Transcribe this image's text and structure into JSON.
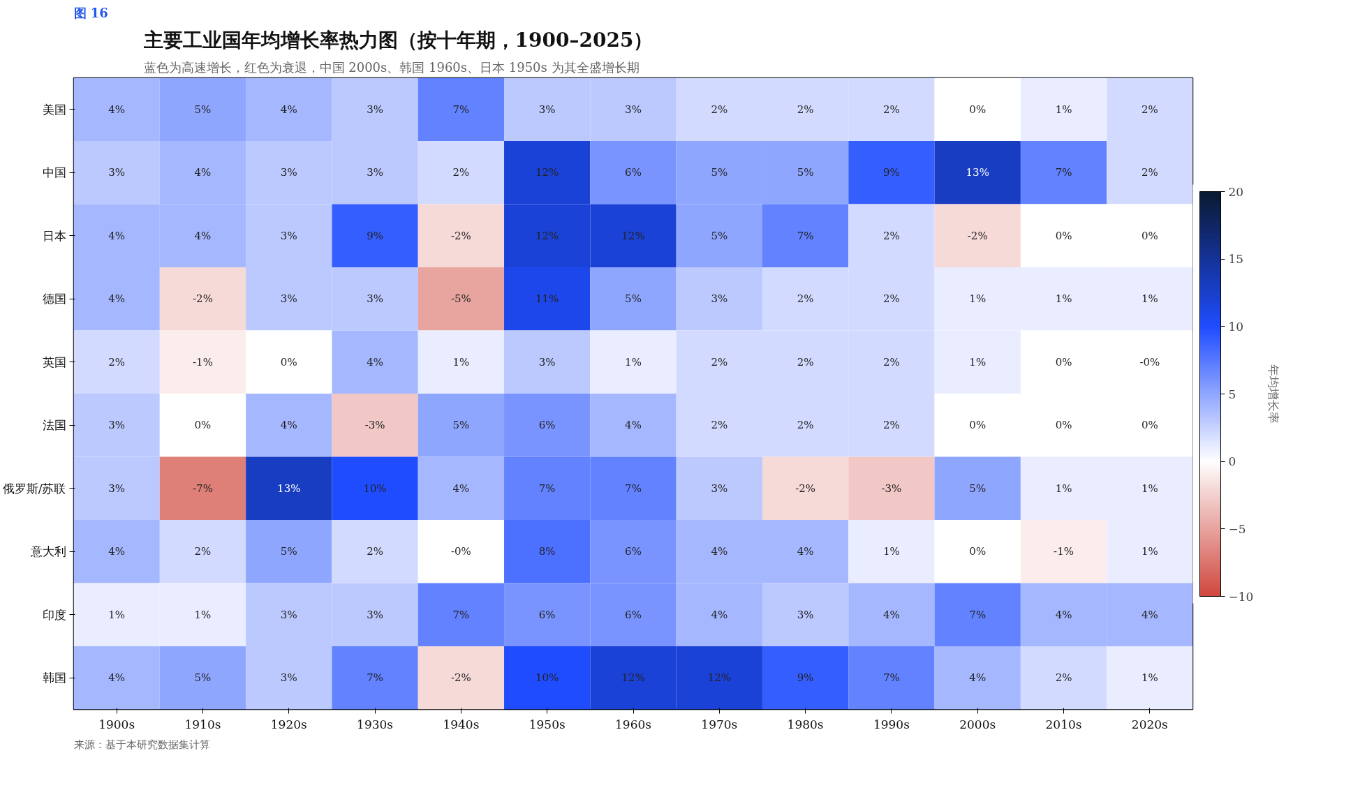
{
  "chart_data": {
    "type": "heatmap",
    "title": "主要工业国年均增长率热力图（按十年期，1900–2025）",
    "subtitle": "蓝色为高速增长，红色为衰退，中国 2000s、韩国 1960s、日本 1950s 为其全盛增长期",
    "annotations": [
      "图 16",
      "来源：基于本研究数据集计算"
    ],
    "categories": [
      "1900s",
      "1910s",
      "1920s",
      "1930s",
      "1940s",
      "1950s",
      "1960s",
      "1970s",
      "1980s",
      "1990s",
      "2000s",
      "2010s",
      "2020s"
    ],
    "y_categories": [
      "美国",
      "中国",
      "日本",
      "德国",
      "英国",
      "法国",
      "俄罗斯/苏联",
      "意大利",
      "印度",
      "韩国"
    ],
    "cells": [
      [
        4,
        5,
        4,
        3,
        7,
        3,
        3,
        2,
        2,
        2,
        0,
        1,
        2
      ],
      [
        3,
        4,
        3,
        3,
        2,
        12,
        6,
        5,
        5,
        9,
        13,
        7,
        2
      ],
      [
        4,
        4,
        3,
        9,
        -2,
        12,
        12,
        5,
        7,
        2,
        -2,
        0,
        0
      ],
      [
        4,
        -2,
        3,
        3,
        -5,
        11,
        5,
        3,
        2,
        2,
        1,
        1,
        1
      ],
      [
        2,
        -1,
        0,
        4,
        1,
        3,
        1,
        2,
        2,
        2,
        1,
        0,
        0
      ],
      [
        3,
        0,
        4,
        -3,
        5,
        6,
        4,
        2,
        2,
        2,
        0,
        0,
        0
      ],
      [
        3,
        -7,
        13,
        10,
        4,
        7,
        7,
        3,
        -2,
        -3,
        5,
        1,
        1
      ],
      [
        4,
        2,
        5,
        2,
        0,
        8,
        6,
        4,
        4,
        1,
        0,
        -1,
        1
      ],
      [
        1,
        1,
        3,
        3,
        7,
        6,
        6,
        4,
        3,
        4,
        7,
        4,
        4
      ],
      [
        4,
        5,
        3,
        7,
        -2,
        10,
        12,
        12,
        9,
        7,
        4,
        2,
        1
      ]
    ],
    "cell_labels": [
      [
        "4%",
        "5%",
        "4%",
        "3%",
        "7%",
        "3%",
        "3%",
        "2%",
        "2%",
        "2%",
        "0%",
        "1%",
        "2%"
      ],
      [
        "3%",
        "4%",
        "3%",
        "3%",
        "2%",
        "12%",
        "6%",
        "5%",
        "5%",
        "9%",
        "13%",
        "7%",
        "2%"
      ],
      [
        "4%",
        "4%",
        "3%",
        "9%",
        "-2%",
        "12%",
        "12%",
        "5%",
        "7%",
        "2%",
        "-2%",
        "0%",
        "0%"
      ],
      [
        "4%",
        "-2%",
        "3%",
        "3%",
        "-5%",
        "11%",
        "5%",
        "3%",
        "2%",
        "2%",
        "1%",
        "1%",
        "1%"
      ],
      [
        "2%",
        "-1%",
        "0%",
        "4%",
        "1%",
        "3%",
        "1%",
        "2%",
        "2%",
        "2%",
        "1%",
        "0%",
        "-0%"
      ],
      [
        "3%",
        "0%",
        "4%",
        "-3%",
        "5%",
        "6%",
        "4%",
        "2%",
        "2%",
        "2%",
        "0%",
        "0%",
        "0%"
      ],
      [
        "3%",
        "-7%",
        "13%",
        "10%",
        "4%",
        "7%",
        "7%",
        "3%",
        "-2%",
        "-3%",
        "5%",
        "1%",
        "1%"
      ],
      [
        "4%",
        "2%",
        "5%",
        "2%",
        "-0%",
        "8%",
        "6%",
        "4%",
        "4%",
        "1%",
        "0%",
        "-1%",
        "1%"
      ],
      [
        "1%",
        "1%",
        "3%",
        "3%",
        "7%",
        "6%",
        "6%",
        "4%",
        "3%",
        "4%",
        "7%",
        "4%",
        "4%"
      ],
      [
        "4%",
        "5%",
        "3%",
        "7%",
        "-2%",
        "10%",
        "12%",
        "12%",
        "9%",
        "7%",
        "4%",
        "2%",
        "1%"
      ]
    ],
    "clabel": "年均增长率",
    "clim": [
      -10,
      20
    ],
    "cticks": [
      -10,
      -5,
      0,
      5,
      10,
      15,
      20
    ]
  }
}
